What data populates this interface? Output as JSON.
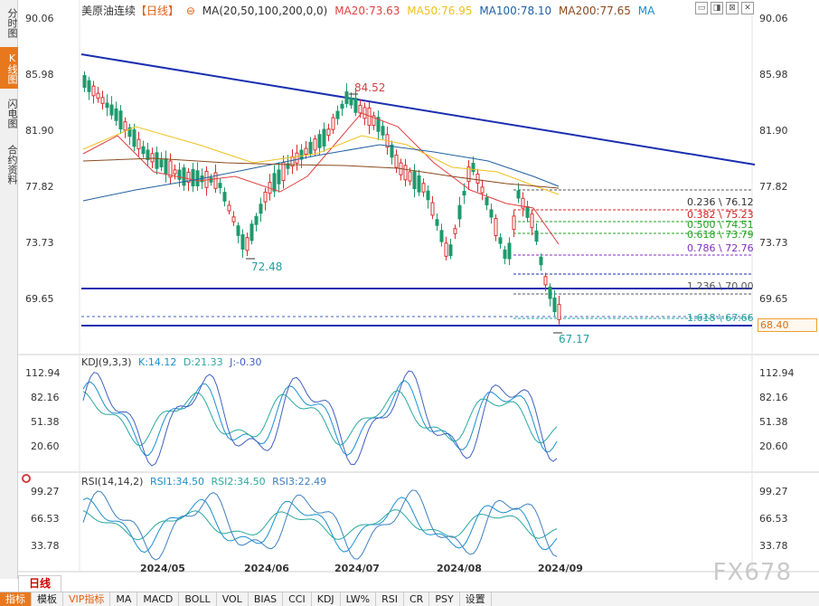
{
  "side_tabs": [
    "分时图",
    "K线图",
    "闪电图",
    "合约资料"
  ],
  "header": {
    "symbol": "美原油连续",
    "period_badge": "【日线】",
    "ma_spec": "MA(20,50,100,200,0,0)",
    "ma20": "MA20:73.63",
    "ma50": "MA50:76.95",
    "ma100": "MA100:78.10",
    "ma200": "MA200:77.65",
    "ma": "MA",
    "colors": {
      "ma20": "#e04040",
      "ma50": "#f0c020",
      "ma100": "#2060a0",
      "ma200": "#8a4a20",
      "ma": "#1a8fd0"
    }
  },
  "price_axis": [
    "90.06",
    "85.98",
    "81.90",
    "77.82",
    "73.73",
    "69.65"
  ],
  "annotations": {
    "high": "84.52",
    "low1": "72.48",
    "low2": "67.17"
  },
  "fib_levels": [
    {
      "text": "0.236 \\ 76.12",
      "color": "#555555"
    },
    {
      "text": "0.382 \\ 75.23",
      "color": "#d02020"
    },
    {
      "text": "0.500 \\ 74.51",
      "color": "#20a020"
    },
    {
      "text": "0.618 \\ 73.79",
      "color": "#20a020"
    },
    {
      "text": "0.786 \\ 72.76",
      "color": "#8030c0"
    },
    {
      "text": "1.236 \\ 70.00",
      "color": "#555555"
    },
    {
      "text": "1.618 \\ 67.66",
      "color": "#20a0a0"
    }
  ],
  "last_price": "68.40",
  "kdj": {
    "label": "KDJ(9,3,3)",
    "k": "K:14.12",
    "d": "D:21.33",
    "j": "J:-0.30",
    "axis": [
      "112.94",
      "82.16",
      "51.38",
      "20.60"
    ],
    "colors": {
      "k": "#1a8fd0",
      "d": "#2aa8a0",
      "j": "#4060c0"
    }
  },
  "rsi": {
    "label": "RSI(14,14,2)",
    "rsi1": "RSI1:34.50",
    "rsi2": "RSI2:34.50",
    "rsi3": "RSI3:22.49",
    "axis": [
      "99.27",
      "66.53",
      "33.78"
    ],
    "colors": {
      "rsi1": "#1a8fd0",
      "rsi2": "#2aa8a0",
      "rsi3": "#4080c0"
    }
  },
  "dates": [
    "2024/05",
    "2024/06",
    "2024/07",
    "2024/08",
    "2024/09"
  ],
  "period_tab": "日线",
  "toolbar": [
    "指标",
    "模板",
    "VIP指标",
    "MA",
    "MACD",
    "BOLL",
    "VOL",
    "BIAS",
    "CCI",
    "KDJ",
    "LW%",
    "RSI",
    "CR",
    "PSY",
    "设置"
  ],
  "watermark": "FX678"
}
